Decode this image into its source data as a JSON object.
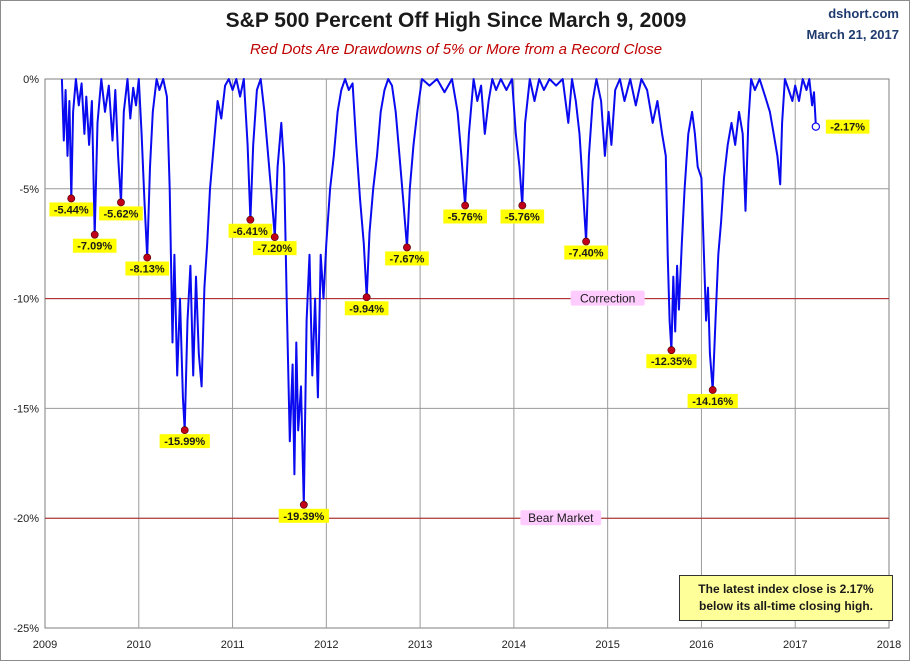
{
  "header": {
    "title": "S&P 500 Percent Off High Since March 9, 2009",
    "subtitle": "Red Dots Are Drawdowns of 5% or More from a Record Close",
    "source": "dshort.com",
    "date": "March 21, 2017"
  },
  "info_box": {
    "line1": "The latest index close is 2.17%",
    "line2": "below its all-time closing high."
  },
  "colors": {
    "series": "#0a0af0",
    "drawdown_dot": "#c0001a",
    "label_bg": "#ffff00",
    "zone_line": "#b22222",
    "zone_label_bg": "#ffccff"
  },
  "chart_data": {
    "type": "line",
    "title": "S&P 500 Percent Off High Since March 9, 2009",
    "xlabel": "",
    "ylabel": "",
    "xlim": [
      2009,
      2018
    ],
    "ylim": [
      -25,
      0
    ],
    "x_ticks": [
      "2009",
      "2010",
      "2011",
      "2012",
      "2013",
      "2014",
      "2015",
      "2016",
      "2017",
      "2018"
    ],
    "y_ticks": [
      "0%",
      "-5%",
      "-10%",
      "-15%",
      "-20%",
      "-25%"
    ],
    "grid": true,
    "reference_lines": [
      {
        "value": -10,
        "label": "Correction"
      },
      {
        "value": -20,
        "label": "Bear Market"
      }
    ],
    "series": [
      {
        "points": [
          [
            2009.18,
            0
          ],
          [
            2009.2,
            -2.8
          ],
          [
            2009.22,
            -0.5
          ],
          [
            2009.24,
            -3.5
          ],
          [
            2009.26,
            -1.0
          ],
          [
            2009.28,
            -5.44
          ],
          [
            2009.3,
            -1.5
          ],
          [
            2009.33,
            0
          ],
          [
            2009.36,
            -1.2
          ],
          [
            2009.39,
            -0.2
          ],
          [
            2009.42,
            -2.5
          ],
          [
            2009.44,
            -0.8
          ],
          [
            2009.47,
            -3.0
          ],
          [
            2009.5,
            -1.0
          ],
          [
            2009.53,
            -7.09
          ],
          [
            2009.56,
            -2.0
          ],
          [
            2009.6,
            0
          ],
          [
            2009.64,
            -1.5
          ],
          [
            2009.68,
            -0.3
          ],
          [
            2009.72,
            -2.8
          ],
          [
            2009.75,
            -0.5
          ],
          [
            2009.78,
            -3.5
          ],
          [
            2009.81,
            -5.62
          ],
          [
            2009.84,
            -1.5
          ],
          [
            2009.88,
            0
          ],
          [
            2009.91,
            -1.8
          ],
          [
            2009.94,
            -0.4
          ],
          [
            2009.97,
            -1.2
          ],
          [
            2010.0,
            0
          ],
          [
            2010.03,
            -2.5
          ],
          [
            2010.06,
            -5.5
          ],
          [
            2010.09,
            -8.13
          ],
          [
            2010.12,
            -4.0
          ],
          [
            2010.15,
            -1.5
          ],
          [
            2010.19,
            0
          ],
          [
            2010.22,
            -0.5
          ],
          [
            2010.26,
            0
          ],
          [
            2010.3,
            -0.8
          ],
          [
            2010.33,
            -5.0
          ],
          [
            2010.36,
            -12.0
          ],
          [
            2010.38,
            -8.0
          ],
          [
            2010.41,
            -13.5
          ],
          [
            2010.44,
            -10.0
          ],
          [
            2010.47,
            -14.5
          ],
          [
            2010.49,
            -15.99
          ],
          [
            2010.52,
            -11.0
          ],
          [
            2010.55,
            -8.5
          ],
          [
            2010.58,
            -13.5
          ],
          [
            2010.61,
            -9.0
          ],
          [
            2010.64,
            -12.5
          ],
          [
            2010.67,
            -14.0
          ],
          [
            2010.7,
            -9.5
          ],
          [
            2010.73,
            -7.5
          ],
          [
            2010.76,
            -5.0
          ],
          [
            2010.8,
            -3.0
          ],
          [
            2010.84,
            -1.0
          ],
          [
            2010.88,
            -1.8
          ],
          [
            2010.92,
            -0.3
          ],
          [
            2010.96,
            0
          ],
          [
            2011.0,
            -0.5
          ],
          [
            2011.04,
            0
          ],
          [
            2011.08,
            -0.8
          ],
          [
            2011.12,
            0
          ],
          [
            2011.16,
            -3.0
          ],
          [
            2011.19,
            -6.41
          ],
          [
            2011.22,
            -3.0
          ],
          [
            2011.26,
            -0.5
          ],
          [
            2011.3,
            0
          ],
          [
            2011.34,
            -1.5
          ],
          [
            2011.38,
            -3.5
          ],
          [
            2011.42,
            -5.5
          ],
          [
            2011.45,
            -7.2
          ],
          [
            2011.48,
            -4.0
          ],
          [
            2011.52,
            -2.0
          ],
          [
            2011.55,
            -4.0
          ],
          [
            2011.58,
            -10.5
          ],
          [
            2011.61,
            -16.5
          ],
          [
            2011.64,
            -13.0
          ],
          [
            2011.66,
            -18.0
          ],
          [
            2011.68,
            -12.0
          ],
          [
            2011.7,
            -16.0
          ],
          [
            2011.73,
            -14.0
          ],
          [
            2011.76,
            -19.39
          ],
          [
            2011.79,
            -11.0
          ],
          [
            2011.82,
            -8.0
          ],
          [
            2011.85,
            -13.5
          ],
          [
            2011.88,
            -10.0
          ],
          [
            2011.91,
            -14.5
          ],
          [
            2011.94,
            -8.0
          ],
          [
            2011.97,
            -10.0
          ],
          [
            2012.0,
            -7.5
          ],
          [
            2012.04,
            -5.0
          ],
          [
            2012.08,
            -3.5
          ],
          [
            2012.12,
            -1.5
          ],
          [
            2012.16,
            -0.5
          ],
          [
            2012.2,
            0
          ],
          [
            2012.24,
            -0.5
          ],
          [
            2012.28,
            -0.2
          ],
          [
            2012.32,
            -3.0
          ],
          [
            2012.36,
            -5.5
          ],
          [
            2012.4,
            -7.5
          ],
          [
            2012.43,
            -9.94
          ],
          [
            2012.46,
            -7.0
          ],
          [
            2012.5,
            -5.0
          ],
          [
            2012.54,
            -3.5
          ],
          [
            2012.58,
            -1.5
          ],
          [
            2012.62,
            -0.5
          ],
          [
            2012.66,
            0
          ],
          [
            2012.7,
            -0.3
          ],
          [
            2012.74,
            -1.5
          ],
          [
            2012.78,
            -3.5
          ],
          [
            2012.82,
            -5.5
          ],
          [
            2012.86,
            -7.67
          ],
          [
            2012.89,
            -5.0
          ],
          [
            2012.93,
            -3.0
          ],
          [
            2012.97,
            -1.5
          ],
          [
            2013.02,
            0
          ],
          [
            2013.1,
            -0.3
          ],
          [
            2013.18,
            0
          ],
          [
            2013.26,
            -0.6
          ],
          [
            2013.34,
            0
          ],
          [
            2013.4,
            -1.5
          ],
          [
            2013.44,
            -3.5
          ],
          [
            2013.48,
            -5.76
          ],
          [
            2013.52,
            -2.5
          ],
          [
            2013.57,
            0
          ],
          [
            2013.61,
            -1.0
          ],
          [
            2013.65,
            -0.3
          ],
          [
            2013.69,
            -2.5
          ],
          [
            2013.73,
            -1.0
          ],
          [
            2013.77,
            0
          ],
          [
            2013.81,
            -0.5
          ],
          [
            2013.86,
            0
          ],
          [
            2013.92,
            -0.5
          ],
          [
            2013.98,
            0
          ],
          [
            2014.02,
            -2.5
          ],
          [
            2014.06,
            -4.0
          ],
          [
            2014.09,
            -5.76
          ],
          [
            2014.12,
            -2.0
          ],
          [
            2014.17,
            0
          ],
          [
            2014.22,
            -1.0
          ],
          [
            2014.27,
            0
          ],
          [
            2014.32,
            -0.5
          ],
          [
            2014.38,
            0
          ],
          [
            2014.45,
            -0.3
          ],
          [
            2014.52,
            0
          ],
          [
            2014.58,
            -2.0
          ],
          [
            2014.62,
            0
          ],
          [
            2014.66,
            -1.0
          ],
          [
            2014.7,
            -2.5
          ],
          [
            2014.73,
            -4.5
          ],
          [
            2014.77,
            -7.4
          ],
          [
            2014.8,
            -3.5
          ],
          [
            2014.84,
            -1.0
          ],
          [
            2014.88,
            0
          ],
          [
            2014.93,
            -1.0
          ],
          [
            2014.97,
            -3.5
          ],
          [
            2015.01,
            -1.5
          ],
          [
            2015.04,
            -3.0
          ],
          [
            2015.08,
            -0.5
          ],
          [
            2015.13,
            0
          ],
          [
            2015.18,
            -1.0
          ],
          [
            2015.24,
            0
          ],
          [
            2015.3,
            -1.2
          ],
          [
            2015.36,
            0
          ],
          [
            2015.42,
            -0.5
          ],
          [
            2015.48,
            -2.0
          ],
          [
            2015.53,
            -1.0
          ],
          [
            2015.58,
            -2.5
          ],
          [
            2015.62,
            -3.5
          ],
          [
            2015.64,
            -8.0
          ],
          [
            2015.66,
            -11.0
          ],
          [
            2015.68,
            -12.35
          ],
          [
            2015.7,
            -9.0
          ],
          [
            2015.72,
            -11.5
          ],
          [
            2015.74,
            -8.5
          ],
          [
            2015.76,
            -10.5
          ],
          [
            2015.79,
            -7.5
          ],
          [
            2015.82,
            -5.0
          ],
          [
            2015.86,
            -2.5
          ],
          [
            2015.9,
            -1.5
          ],
          [
            2015.93,
            -2.5
          ],
          [
            2015.96,
            -4.0
          ],
          [
            2016.0,
            -4.5
          ],
          [
            2016.03,
            -8.5
          ],
          [
            2016.05,
            -11.0
          ],
          [
            2016.07,
            -9.5
          ],
          [
            2016.09,
            -12.5
          ],
          [
            2016.12,
            -14.16
          ],
          [
            2016.15,
            -11.0
          ],
          [
            2016.18,
            -8.0
          ],
          [
            2016.21,
            -6.5
          ],
          [
            2016.24,
            -4.5
          ],
          [
            2016.28,
            -3.0
          ],
          [
            2016.32,
            -2.0
          ],
          [
            2016.36,
            -3.0
          ],
          [
            2016.4,
            -1.5
          ],
          [
            2016.44,
            -2.5
          ],
          [
            2016.47,
            -6.0
          ],
          [
            2016.5,
            -2.0
          ],
          [
            2016.53,
            0
          ],
          [
            2016.57,
            -0.5
          ],
          [
            2016.62,
            0
          ],
          [
            2016.68,
            -0.8
          ],
          [
            2016.73,
            -1.5
          ],
          [
            2016.77,
            -2.5
          ],
          [
            2016.81,
            -3.5
          ],
          [
            2016.84,
            -4.8
          ],
          [
            2016.86,
            -2.0
          ],
          [
            2016.89,
            0
          ],
          [
            2016.93,
            -0.5
          ],
          [
            2016.97,
            -1.0
          ],
          [
            2017.0,
            -0.3
          ],
          [
            2017.04,
            -1.0
          ],
          [
            2017.08,
            0
          ],
          [
            2017.12,
            -0.5
          ],
          [
            2017.15,
            0
          ],
          [
            2017.18,
            -1.2
          ],
          [
            2017.2,
            -0.6
          ],
          [
            2017.22,
            -2.17
          ]
        ]
      }
    ],
    "drawdowns": [
      {
        "x": 2009.28,
        "y": -5.44,
        "label": "-5.44%",
        "pos": "below"
      },
      {
        "x": 2009.53,
        "y": -7.09,
        "label": "-7.09%",
        "pos": "below"
      },
      {
        "x": 2009.81,
        "y": -5.62,
        "label": "-5.62%",
        "pos": "below"
      },
      {
        "x": 2010.09,
        "y": -8.13,
        "label": "-8.13%",
        "pos": "below"
      },
      {
        "x": 2010.49,
        "y": -15.99,
        "label": "-15.99%",
        "pos": "below"
      },
      {
        "x": 2011.19,
        "y": -6.41,
        "label": "-6.41%",
        "pos": "below"
      },
      {
        "x": 2011.45,
        "y": -7.2,
        "label": "-7.20%",
        "pos": "below"
      },
      {
        "x": 2011.76,
        "y": -19.39,
        "label": "-19.39%",
        "pos": "below"
      },
      {
        "x": 2012.43,
        "y": -9.94,
        "label": "-9.94%",
        "pos": "below"
      },
      {
        "x": 2012.86,
        "y": -7.67,
        "label": "-7.67%",
        "pos": "below"
      },
      {
        "x": 2013.48,
        "y": -5.76,
        "label": "-5.76%",
        "pos": "below"
      },
      {
        "x": 2014.09,
        "y": -5.76,
        "label": "-5.76%",
        "pos": "below"
      },
      {
        "x": 2014.77,
        "y": -7.4,
        "label": "-7.40%",
        "pos": "below"
      },
      {
        "x": 2015.68,
        "y": -12.35,
        "label": "-12.35%",
        "pos": "below"
      },
      {
        "x": 2016.12,
        "y": -14.16,
        "label": "-14.16%",
        "pos": "below"
      }
    ],
    "latest": {
      "x": 2017.22,
      "y": -2.17,
      "label": "-2.17%"
    }
  }
}
